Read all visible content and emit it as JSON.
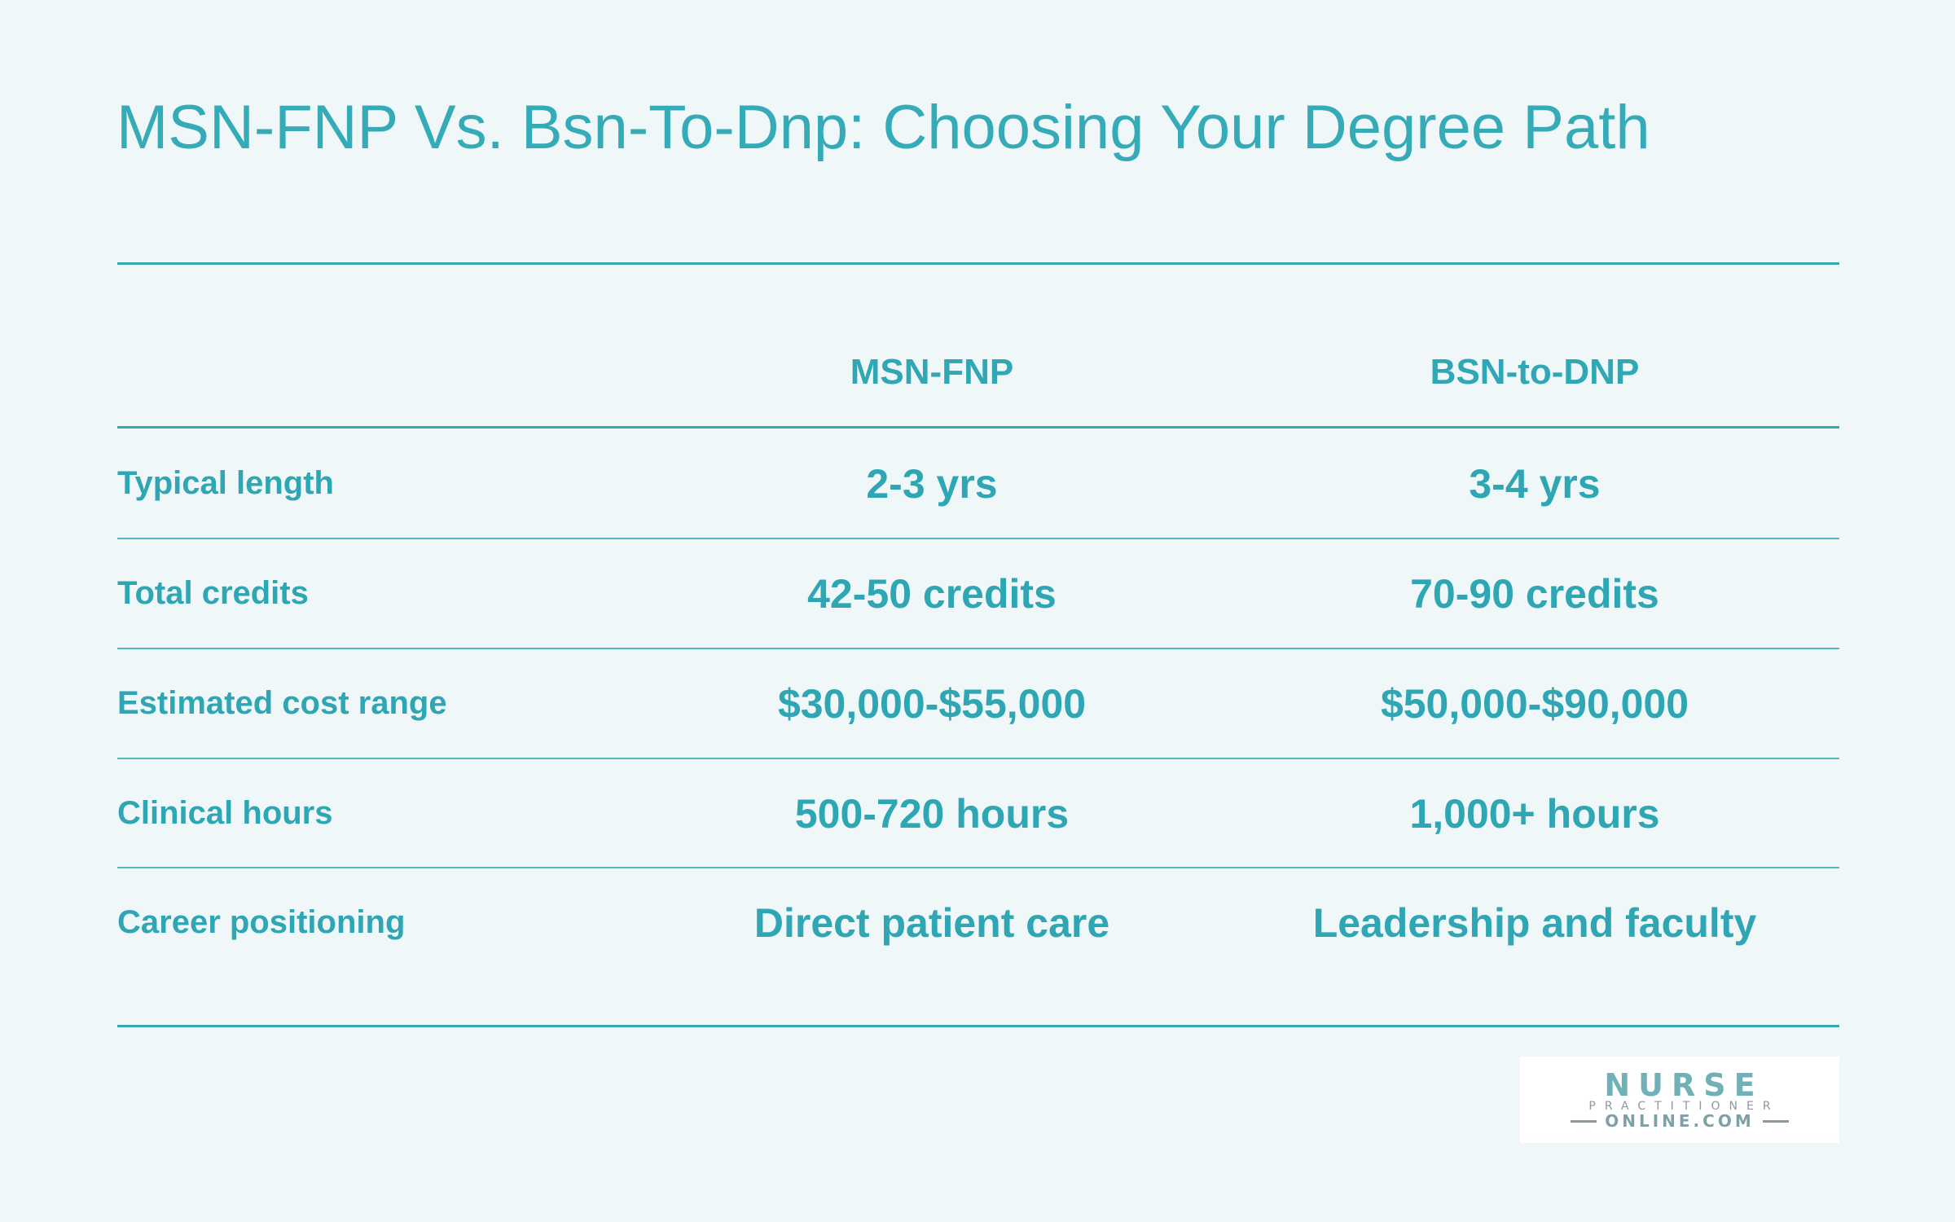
{
  "title": "MSN-FNP Vs. Bsn-To-Dnp: Choosing Your Degree Path",
  "table": {
    "columns": [
      "MSN-FNP",
      "BSN-to-DNP"
    ],
    "rows": [
      {
        "label": "Typical length",
        "values": [
          "2-3 yrs",
          "3-4 yrs"
        ]
      },
      {
        "label": "Total credits",
        "values": [
          "42-50 credits",
          "70-90 credits"
        ]
      },
      {
        "label": "Estimated cost range",
        "values": [
          "$30,000-$55,000",
          "$50,000-$90,000"
        ]
      },
      {
        "label": "Clinical hours",
        "values": [
          "500-720 hours",
          "1,000+ hours"
        ]
      },
      {
        "label": "Career positioning",
        "values": [
          "Direct patient care",
          "Leadership and faculty"
        ]
      }
    ]
  },
  "logo": {
    "line1": "NURSE",
    "line2": "PRACTITIONER",
    "line3": "ONLINE.COM"
  },
  "colors": {
    "background": "#eff7f8",
    "accent": "#2eaab6"
  }
}
